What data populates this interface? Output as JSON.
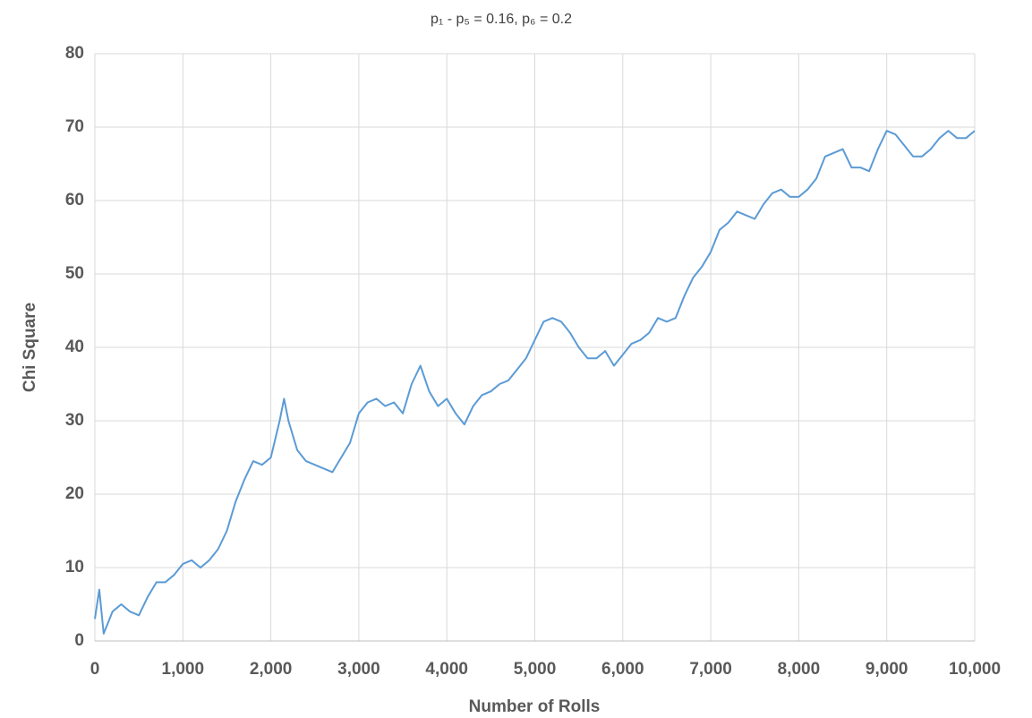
{
  "chart_data": {
    "type": "line",
    "title": "p₁ - p₅ = 0.16, p₆ = 0.2",
    "x_label": "Number of Rolls",
    "y_label": "Chi Square",
    "grid": true,
    "xlim": [
      0,
      10000
    ],
    "ylim": [
      0,
      80
    ],
    "xticks": [
      0,
      {
        "value": 1000,
        "label": "1,000"
      },
      {
        "value": 2000,
        "label": "2,000"
      },
      {
        "value": 3000,
        "label": "3,000"
      },
      {
        "value": 4000,
        "label": "4,000"
      },
      {
        "value": 5000,
        "label": "5,000"
      },
      {
        "value": 6000,
        "label": "6,000"
      },
      {
        "value": 7000,
        "label": "7,000"
      },
      {
        "value": 8000,
        "label": "8,000"
      },
      {
        "value": 9000,
        "label": "9,000"
      },
      {
        "value": 10000,
        "label": "10,000"
      }
    ],
    "yticks": [
      0,
      10,
      20,
      30,
      40,
      50,
      60,
      70,
      80
    ],
    "x": [
      0,
      50,
      100,
      200,
      300,
      400,
      500,
      600,
      700,
      800,
      900,
      1000,
      1100,
      1200,
      1300,
      1400,
      1500,
      1600,
      1700,
      1800,
      1900,
      2000,
      2100,
      2150,
      2200,
      2300,
      2400,
      2500,
      2600,
      2700,
      2800,
      2900,
      3000,
      3100,
      3200,
      3300,
      3400,
      3500,
      3600,
      3700,
      3800,
      3900,
      4000,
      4100,
      4200,
      4300,
      4400,
      4500,
      4600,
      4700,
      4800,
      4900,
      5000,
      5100,
      5200,
      5300,
      5400,
      5500,
      5600,
      5700,
      5800,
      5900,
      6000,
      6100,
      6200,
      6300,
      6400,
      6500,
      6600,
      6700,
      6800,
      6900,
      7000,
      7100,
      7200,
      7300,
      7400,
      7500,
      7600,
      7700,
      7800,
      7900,
      8000,
      8100,
      8200,
      8300,
      8400,
      8500,
      8600,
      8700,
      8800,
      8900,
      9000,
      9100,
      9200,
      9300,
      9400,
      9500,
      9600,
      9700,
      9800,
      9900,
      10000
    ],
    "series": [
      {
        "name": "Chi Square",
        "color": "#5b9bd5",
        "values": [
          3,
          7,
          1,
          4,
          5,
          4,
          3.5,
          6,
          8,
          8,
          9,
          10.5,
          11,
          10,
          11,
          12.5,
          15,
          19,
          22,
          24.5,
          24,
          25,
          30,
          33,
          30,
          26,
          24.5,
          24,
          23.5,
          23,
          25,
          27,
          31,
          32.5,
          33,
          32,
          32.5,
          31,
          35,
          37.5,
          34,
          32,
          33,
          31,
          29.5,
          32,
          33.5,
          34,
          35,
          35.5,
          37,
          38.5,
          41,
          43.5,
          44,
          43.5,
          42,
          40,
          38.5,
          38.5,
          39.5,
          37.5,
          39,
          40.5,
          41,
          42,
          44,
          43.5,
          44,
          47,
          49.5,
          51,
          53,
          56,
          57,
          58.5,
          58,
          57.5,
          59.5,
          61,
          61.5,
          60.5,
          60.5,
          61.5,
          63,
          66,
          66.5,
          67,
          64.5,
          64.5,
          64,
          67,
          69.5,
          69,
          67.5,
          66,
          66,
          67,
          68.5,
          69.5,
          68.5,
          68.5,
          69.5
        ]
      }
    ]
  }
}
